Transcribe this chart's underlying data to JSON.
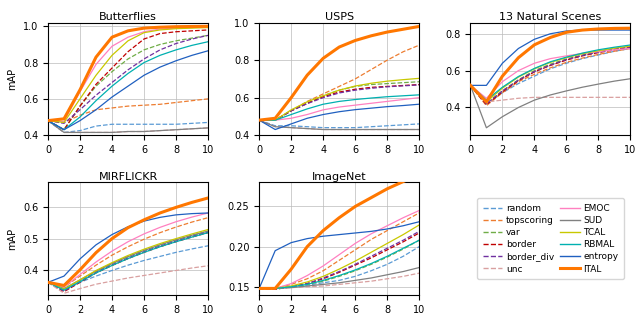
{
  "titles": [
    "Butterflies",
    "USPS",
    "13 Natural Scenes",
    "MIRFLICKR",
    "ImageNet"
  ],
  "ylabel": "mAP",
  "x": [
    0,
    1,
    2,
    3,
    4,
    5,
    6,
    7,
    8,
    9,
    10
  ],
  "methods": {
    "random": {
      "color": "#5b9bd5",
      "ls": "--",
      "lw": 0.9,
      "zorder": 2
    },
    "topscoring": {
      "color": "#ed7d31",
      "ls": "--",
      "lw": 0.9,
      "zorder": 2
    },
    "var": {
      "color": "#70ad47",
      "ls": "--",
      "lw": 0.9,
      "zorder": 2
    },
    "border": {
      "color": "#c00000",
      "ls": "--",
      "lw": 0.9,
      "zorder": 2
    },
    "border_div": {
      "color": "#7030a0",
      "ls": "--",
      "lw": 0.9,
      "zorder": 2
    },
    "unc": {
      "color": "#d9a0a0",
      "ls": "--",
      "lw": 0.9,
      "zorder": 2
    },
    "EMOC": {
      "color": "#ff80c0",
      "ls": "-",
      "lw": 0.9,
      "zorder": 2
    },
    "SUD": {
      "color": "#808080",
      "ls": "-",
      "lw": 0.9,
      "zorder": 2
    },
    "TCAL": {
      "color": "#c8c800",
      "ls": "-",
      "lw": 0.9,
      "zorder": 2
    },
    "RBMAL": {
      "color": "#00b0b0",
      "ls": "-",
      "lw": 0.9,
      "zorder": 2
    },
    "entropy": {
      "color": "#2060c0",
      "ls": "-",
      "lw": 0.9,
      "zorder": 2
    },
    "ITAL": {
      "color": "#ff7700",
      "ls": "-",
      "lw": 2.2,
      "zorder": 5
    }
  },
  "data": {
    "Butterflies": {
      "random": [
        0.48,
        0.415,
        0.425,
        0.45,
        0.46,
        0.46,
        0.46,
        0.46,
        0.46,
        0.465,
        0.47
      ],
      "topscoring": [
        0.48,
        0.47,
        0.51,
        0.54,
        0.55,
        0.56,
        0.565,
        0.57,
        0.58,
        0.59,
        0.6
      ],
      "var": [
        0.48,
        0.43,
        0.56,
        0.67,
        0.75,
        0.82,
        0.87,
        0.9,
        0.92,
        0.935,
        0.95
      ],
      "border": [
        0.48,
        0.43,
        0.56,
        0.68,
        0.77,
        0.86,
        0.93,
        0.96,
        0.97,
        0.975,
        0.98
      ],
      "border_div": [
        0.48,
        0.465,
        0.54,
        0.62,
        0.69,
        0.76,
        0.82,
        0.87,
        0.905,
        0.93,
        0.95
      ],
      "unc": [
        0.48,
        0.415,
        0.415,
        0.415,
        0.415,
        0.42,
        0.42,
        0.425,
        0.43,
        0.435,
        0.44
      ],
      "EMOC": [
        0.48,
        0.475,
        0.64,
        0.79,
        0.89,
        0.94,
        0.97,
        0.985,
        0.99,
        0.993,
        0.997
      ],
      "SUD": [
        0.48,
        0.415,
        0.415,
        0.415,
        0.415,
        0.42,
        0.42,
        0.425,
        0.43,
        0.435,
        0.44
      ],
      "TCAL": [
        0.48,
        0.47,
        0.6,
        0.73,
        0.84,
        0.92,
        0.965,
        0.98,
        0.987,
        0.99,
        0.993
      ],
      "RBMAL": [
        0.48,
        0.43,
        0.5,
        0.59,
        0.67,
        0.74,
        0.8,
        0.84,
        0.87,
        0.895,
        0.915
      ],
      "entropy": [
        0.48,
        0.43,
        0.48,
        0.54,
        0.61,
        0.67,
        0.73,
        0.775,
        0.81,
        0.84,
        0.865
      ],
      "ITAL": [
        0.48,
        0.49,
        0.65,
        0.83,
        0.94,
        0.975,
        0.99,
        0.995,
        0.998,
        0.999,
        1.0
      ]
    },
    "USPS": {
      "random": [
        0.48,
        0.45,
        0.45,
        0.445,
        0.44,
        0.44,
        0.44,
        0.445,
        0.45,
        0.455,
        0.46
      ],
      "topscoring": [
        0.48,
        0.48,
        0.53,
        0.58,
        0.62,
        0.66,
        0.7,
        0.75,
        0.8,
        0.845,
        0.88
      ],
      "var": [
        0.48,
        0.48,
        0.53,
        0.57,
        0.61,
        0.64,
        0.66,
        0.67,
        0.675,
        0.68,
        0.685
      ],
      "border": [
        0.48,
        0.48,
        0.53,
        0.57,
        0.605,
        0.63,
        0.645,
        0.655,
        0.66,
        0.665,
        0.67
      ],
      "border_div": [
        0.48,
        0.48,
        0.53,
        0.568,
        0.6,
        0.625,
        0.64,
        0.65,
        0.658,
        0.663,
        0.668
      ],
      "unc": [
        0.48,
        0.445,
        0.44,
        0.435,
        0.43,
        0.43,
        0.43,
        0.43,
        0.43,
        0.43,
        0.43
      ],
      "EMOC": [
        0.48,
        0.48,
        0.49,
        0.51,
        0.535,
        0.55,
        0.56,
        0.57,
        0.58,
        0.59,
        0.6
      ],
      "SUD": [
        0.48,
        0.445,
        0.44,
        0.435,
        0.43,
        0.43,
        0.43,
        0.43,
        0.43,
        0.43,
        0.43
      ],
      "TCAL": [
        0.48,
        0.48,
        0.535,
        0.578,
        0.61,
        0.64,
        0.662,
        0.677,
        0.688,
        0.696,
        0.703
      ],
      "RBMAL": [
        0.48,
        0.48,
        0.51,
        0.54,
        0.565,
        0.58,
        0.59,
        0.598,
        0.605,
        0.61,
        0.615
      ],
      "entropy": [
        0.48,
        0.43,
        0.46,
        0.49,
        0.51,
        0.525,
        0.536,
        0.544,
        0.552,
        0.558,
        0.565
      ],
      "ITAL": [
        0.48,
        0.49,
        0.6,
        0.72,
        0.81,
        0.87,
        0.905,
        0.93,
        0.95,
        0.965,
        0.98
      ]
    },
    "13 Natural Scenes": {
      "random": [
        0.52,
        0.42,
        0.48,
        0.53,
        0.57,
        0.61,
        0.64,
        0.665,
        0.685,
        0.705,
        0.72
      ],
      "topscoring": [
        0.52,
        0.41,
        0.48,
        0.54,
        0.58,
        0.615,
        0.645,
        0.668,
        0.688,
        0.705,
        0.72
      ],
      "var": [
        0.52,
        0.42,
        0.49,
        0.55,
        0.6,
        0.635,
        0.663,
        0.685,
        0.703,
        0.718,
        0.73
      ],
      "border": [
        0.52,
        0.415,
        0.485,
        0.545,
        0.593,
        0.628,
        0.657,
        0.68,
        0.698,
        0.713,
        0.726
      ],
      "border_div": [
        0.52,
        0.42,
        0.49,
        0.548,
        0.595,
        0.63,
        0.66,
        0.682,
        0.7,
        0.715,
        0.728
      ],
      "unc": [
        0.52,
        0.43,
        0.44,
        0.45,
        0.455,
        0.455,
        0.455,
        0.455,
        0.455,
        0.455,
        0.455
      ],
      "EMOC": [
        0.52,
        0.45,
        0.54,
        0.6,
        0.64,
        0.665,
        0.68,
        0.693,
        0.703,
        0.713,
        0.72
      ],
      "SUD": [
        0.52,
        0.29,
        0.35,
        0.4,
        0.44,
        0.468,
        0.49,
        0.51,
        0.527,
        0.543,
        0.556
      ],
      "TCAL": [
        0.52,
        0.43,
        0.505,
        0.565,
        0.61,
        0.645,
        0.67,
        0.692,
        0.708,
        0.722,
        0.733
      ],
      "RBMAL": [
        0.52,
        0.44,
        0.51,
        0.568,
        0.612,
        0.648,
        0.673,
        0.695,
        0.713,
        0.727,
        0.739
      ],
      "entropy": [
        0.52,
        0.52,
        0.64,
        0.72,
        0.77,
        0.8,
        0.815,
        0.82,
        0.82,
        0.82,
        0.82
      ],
      "ITAL": [
        0.52,
        0.43,
        0.57,
        0.67,
        0.74,
        0.78,
        0.808,
        0.82,
        0.826,
        0.829,
        0.83
      ]
    },
    "MIRFLICKR": {
      "random": [
        0.36,
        0.335,
        0.36,
        0.38,
        0.398,
        0.415,
        0.43,
        0.443,
        0.456,
        0.467,
        0.477
      ],
      "topscoring": [
        0.36,
        0.345,
        0.38,
        0.415,
        0.447,
        0.474,
        0.498,
        0.519,
        0.537,
        0.553,
        0.567
      ],
      "var": [
        0.36,
        0.335,
        0.365,
        0.395,
        0.42,
        0.443,
        0.462,
        0.48,
        0.496,
        0.51,
        0.524
      ],
      "border": [
        0.36,
        0.33,
        0.36,
        0.39,
        0.414,
        0.436,
        0.456,
        0.474,
        0.49,
        0.505,
        0.519
      ],
      "border_div": [
        0.36,
        0.332,
        0.362,
        0.392,
        0.416,
        0.438,
        0.458,
        0.476,
        0.492,
        0.507,
        0.521
      ],
      "unc": [
        0.36,
        0.325,
        0.34,
        0.354,
        0.364,
        0.374,
        0.382,
        0.39,
        0.398,
        0.406,
        0.413
      ],
      "EMOC": [
        0.36,
        0.345,
        0.385,
        0.425,
        0.46,
        0.49,
        0.515,
        0.536,
        0.554,
        0.569,
        0.582
      ],
      "SUD": [
        0.36,
        0.34,
        0.368,
        0.396,
        0.42,
        0.442,
        0.462,
        0.48,
        0.496,
        0.511,
        0.524
      ],
      "TCAL": [
        0.36,
        0.338,
        0.368,
        0.398,
        0.423,
        0.446,
        0.466,
        0.484,
        0.5,
        0.515,
        0.529
      ],
      "RBMAL": [
        0.36,
        0.335,
        0.362,
        0.39,
        0.414,
        0.436,
        0.456,
        0.474,
        0.49,
        0.505,
        0.519
      ],
      "entropy": [
        0.36,
        0.38,
        0.435,
        0.48,
        0.513,
        0.538,
        0.556,
        0.568,
        0.576,
        0.58,
        0.582
      ],
      "ITAL": [
        0.36,
        0.35,
        0.4,
        0.455,
        0.5,
        0.535,
        0.56,
        0.582,
        0.6,
        0.616,
        0.63
      ]
    },
    "ImageNet": {
      "random": [
        0.148,
        0.148,
        0.15,
        0.152,
        0.155,
        0.158,
        0.163,
        0.17,
        0.178,
        0.188,
        0.2
      ],
      "topscoring": [
        0.148,
        0.148,
        0.153,
        0.16,
        0.17,
        0.183,
        0.196,
        0.209,
        0.22,
        0.231,
        0.242
      ],
      "var": [
        0.148,
        0.148,
        0.15,
        0.153,
        0.157,
        0.163,
        0.17,
        0.178,
        0.187,
        0.197,
        0.208
      ],
      "border": [
        0.148,
        0.147,
        0.15,
        0.154,
        0.16,
        0.168,
        0.177,
        0.186,
        0.196,
        0.206,
        0.217
      ],
      "border_div": [
        0.148,
        0.147,
        0.15,
        0.154,
        0.161,
        0.169,
        0.178,
        0.188,
        0.198,
        0.208,
        0.219
      ],
      "unc": [
        0.148,
        0.148,
        0.149,
        0.15,
        0.151,
        0.153,
        0.155,
        0.157,
        0.16,
        0.163,
        0.167
      ],
      "EMOC": [
        0.148,
        0.148,
        0.154,
        0.164,
        0.176,
        0.19,
        0.204,
        0.216,
        0.226,
        0.236,
        0.245
      ],
      "SUD": [
        0.148,
        0.148,
        0.149,
        0.151,
        0.153,
        0.155,
        0.158,
        0.161,
        0.165,
        0.169,
        0.174
      ],
      "TCAL": [
        0.148,
        0.148,
        0.151,
        0.156,
        0.163,
        0.172,
        0.182,
        0.193,
        0.204,
        0.215,
        0.227
      ],
      "RBMAL": [
        0.148,
        0.148,
        0.15,
        0.153,
        0.158,
        0.164,
        0.171,
        0.179,
        0.188,
        0.198,
        0.208
      ],
      "entropy": [
        0.148,
        0.195,
        0.205,
        0.21,
        0.213,
        0.215,
        0.217,
        0.219,
        0.222,
        0.226,
        0.231
      ],
      "ITAL": [
        0.148,
        0.148,
        0.172,
        0.2,
        0.22,
        0.236,
        0.25,
        0.261,
        0.272,
        0.281,
        0.29
      ]
    }
  },
  "ylims": {
    "Butterflies": [
      0.4,
      1.02
    ],
    "USPS": [
      0.4,
      1.0
    ],
    "13 Natural Scenes": [
      0.25,
      0.86
    ],
    "MIRFLICKR": [
      0.32,
      0.68
    ],
    "ImageNet": [
      0.14,
      0.28
    ]
  },
  "yticks": {
    "Butterflies": [
      0.4,
      0.6,
      0.8,
      1.0
    ],
    "USPS": [
      0.4,
      0.6,
      0.8,
      1.0
    ],
    "13 Natural Scenes": [
      0.4,
      0.6,
      0.8
    ],
    "MIRFLICKR": [
      0.4,
      0.5,
      0.6
    ],
    "ImageNet": [
      0.15,
      0.2,
      0.25
    ]
  }
}
